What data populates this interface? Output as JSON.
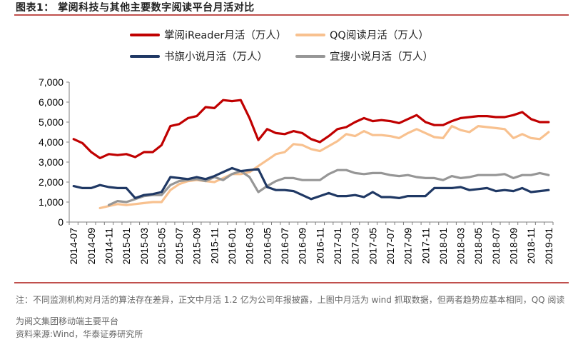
{
  "header": {
    "title": "图表1：   掌阅科技与其他主要数字阅读平台月活对比"
  },
  "footer": {
    "note": "注：不同监测机构对月活的算法存在差异，正文中月活 1.2 亿为公司年报披露，上图中月活为 wind 抓取数据，但两者趋势应基本相同，QQ 阅读为阅文集团移动端主要平台",
    "source": "资料来源:Wind，华泰证券研究所"
  },
  "chart_data": {
    "type": "line",
    "title": "",
    "xlabel": "",
    "ylabel": "",
    "ylim": [
      0,
      7000
    ],
    "yticks": [
      "0",
      "1,000",
      "2,000",
      "3,000",
      "4,000",
      "5,000",
      "6,000",
      "7,000"
    ],
    "grid": false,
    "legend": "top",
    "x": [
      "2014-07",
      "2014-08",
      "2014-09",
      "2014-10",
      "2014-11",
      "2014-12",
      "2015-01",
      "2015-02",
      "2015-03",
      "2015-04",
      "2015-05",
      "2015-06",
      "2015-07",
      "2015-08",
      "2015-09",
      "2015-10",
      "2015-11",
      "2015-12",
      "2016-01",
      "2016-02",
      "2016-03",
      "2016-04",
      "2016-05",
      "2016-06",
      "2016-07",
      "2016-08",
      "2016-09",
      "2016-10",
      "2016-11",
      "2016-12",
      "2017-01",
      "2017-02",
      "2017-03",
      "2017-04",
      "2017-05",
      "2017-06",
      "2017-07",
      "2017-08",
      "2017-09",
      "2017-10",
      "2017-11",
      "2017-12",
      "2018-01",
      "2018-02",
      "2018-03",
      "2018-04",
      "2018-05",
      "2018-06",
      "2018-07",
      "2018-08",
      "2018-09",
      "2018-10",
      "2018-11",
      "2018-12",
      "2019-01"
    ],
    "xticks": [
      "2014-07",
      "2014-09",
      "2014-11",
      "2015-01",
      "2015-03",
      "2015-05",
      "2015-07",
      "2015-09",
      "2015-11",
      "2016-01",
      "2016-03",
      "2016-05",
      "2016-07",
      "2016-09",
      "2016-11",
      "2017-01",
      "2017-03",
      "2017-05",
      "2017-07",
      "2017-09",
      "2017-11",
      "2018-01",
      "2018-03",
      "2018-05",
      "2018-07",
      "2018-09",
      "2018-11",
      "2019-01"
    ],
    "series": [
      {
        "name": "掌阅iReader月活（万人）",
        "color": "#c00000",
        "values": [
          4150,
          3950,
          3500,
          3200,
          3400,
          3350,
          3400,
          3250,
          3500,
          3500,
          3850,
          4800,
          4900,
          5200,
          5300,
          5750,
          5700,
          6100,
          6050,
          6100,
          5200,
          4100,
          4650,
          4450,
          4400,
          4550,
          4450,
          4150,
          4000,
          4300,
          4650,
          4750,
          5000,
          5200,
          5050,
          5100,
          5050,
          4950,
          5150,
          5350,
          5000,
          4850,
          4850,
          5050,
          5200,
          5250,
          5300,
          5300,
          5250,
          5250,
          5350,
          5500,
          5150,
          5000,
          5000
        ]
      },
      {
        "name": "QQ阅读月活（万人）",
        "color": "#f8c18f",
        "values": [
          null,
          null,
          null,
          700,
          800,
          900,
          850,
          900,
          950,
          1000,
          1000,
          1600,
          1900,
          2050,
          2100,
          2050,
          2000,
          2200,
          2400,
          2400,
          2500,
          2800,
          3100,
          3400,
          3500,
          3900,
          3850,
          3650,
          3550,
          3800,
          4050,
          4400,
          4300,
          4550,
          4350,
          4350,
          4300,
          4200,
          4450,
          4650,
          4450,
          4250,
          4200,
          4800,
          4600,
          4500,
          4800,
          4750,
          4700,
          4650,
          4200,
          4400,
          4200,
          4150,
          4500
        ]
      },
      {
        "name": "书旗小说月活（万人）",
        "color": "#1f3864",
        "values": [
          1800,
          1700,
          1700,
          1850,
          1750,
          1700,
          1700,
          1200,
          1350,
          1400,
          1500,
          2250,
          2200,
          2150,
          2250,
          2150,
          2300,
          2500,
          2700,
          2550,
          2600,
          2650,
          1750,
          1600,
          1600,
          1550,
          1350,
          1150,
          1300,
          1450,
          1300,
          1300,
          1350,
          1250,
          1500,
          1250,
          1250,
          1200,
          1300,
          1300,
          1300,
          1700,
          1700,
          1700,
          1750,
          1600,
          1650,
          1700,
          1550,
          1600,
          1550,
          1700,
          1500,
          1550,
          1600
        ]
      },
      {
        "name": "宜搜小说月活（万人）",
        "color": "#969696",
        "values": [
          null,
          null,
          null,
          null,
          850,
          1050,
          1000,
          1150,
          1300,
          1350,
          1350,
          1850,
          2050,
          2100,
          2150,
          2050,
          2250,
          2100,
          2400,
          2550,
          2250,
          1500,
          1800,
          2050,
          2200,
          2200,
          2100,
          2100,
          2100,
          2400,
          2600,
          2600,
          2450,
          2400,
          2450,
          2450,
          2350,
          2300,
          2350,
          2250,
          2200,
          2200,
          2100,
          2300,
          2200,
          2250,
          2350,
          2350,
          2350,
          2400,
          2200,
          2350,
          2350,
          2450,
          2350
        ]
      }
    ]
  }
}
